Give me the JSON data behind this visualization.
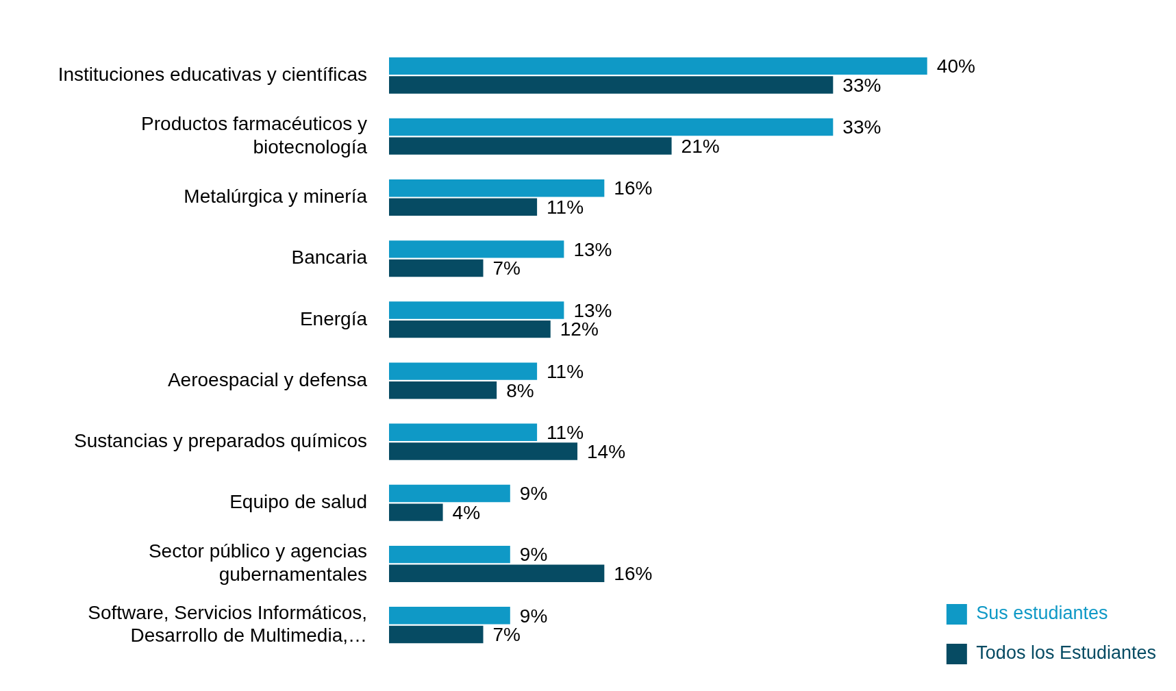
{
  "chart_data": {
    "type": "bar",
    "orientation": "horizontal",
    "categories": [
      "Instituciones educativas y científicas",
      "Productos farmacéuticos y biotecnología",
      "Metalúrgica y minería",
      "Bancaria",
      "Energía",
      "Aeroespacial y defensa",
      "Sustancias y preparados químicos",
      "Equipo de salud",
      "Sector público y agencias gubernamentales",
      "Software, Servicios Informáticos, Desarrollo de Multimedia,…"
    ],
    "series": [
      {
        "name": "Sus estudiantes",
        "color": "#0f99c6",
        "values": [
          40,
          33,
          16,
          13,
          13,
          11,
          11,
          9,
          9,
          9
        ],
        "value_labels": [
          "40%",
          "33%",
          "16%",
          "13%",
          "13%",
          "11%",
          "11%",
          "9%",
          "9%",
          "9%"
        ]
      },
      {
        "name": "Todos los Estudiantes",
        "color": "#064b63",
        "values": [
          33,
          21,
          11,
          7,
          12,
          8,
          14,
          4,
          16,
          7
        ],
        "value_labels": [
          "33%",
          "21%",
          "11%",
          "7%",
          "12%",
          "8%",
          "14%",
          "4%",
          "16%",
          "7%"
        ]
      }
    ],
    "legend": "bottom right"
  }
}
